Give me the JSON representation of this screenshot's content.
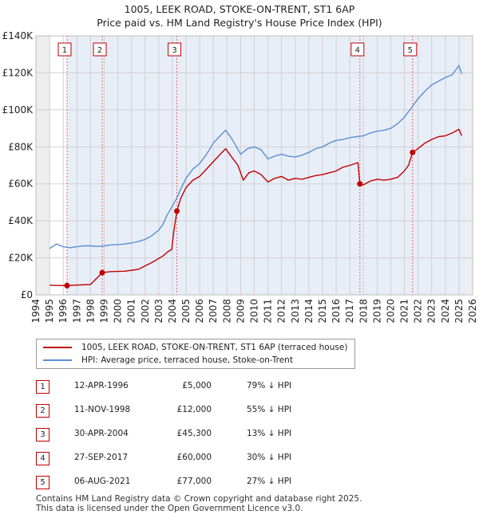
{
  "title_line1": "1005, LEEK ROAD, STOKE-ON-TRENT, ST1 6AP",
  "title_line2": "Price paid vs. HM Land Registry's House Price Index (HPI)",
  "chart_data": {
    "type": "line",
    "xlim": [
      1994,
      2026
    ],
    "ylim": [
      0,
      140000
    ],
    "yticks": [
      0,
      20000,
      40000,
      60000,
      80000,
      100000,
      120000,
      140000
    ],
    "ytick_labels": [
      "£0",
      "£20K",
      "£40K",
      "£60K",
      "£80K",
      "£100K",
      "£120K",
      "£140K"
    ],
    "xticks": [
      1994,
      1995,
      1996,
      1997,
      1998,
      1999,
      2000,
      2001,
      2002,
      2003,
      2004,
      2005,
      2006,
      2007,
      2008,
      2009,
      2010,
      2011,
      2012,
      2013,
      2014,
      2015,
      2016,
      2017,
      2018,
      2019,
      2020,
      2021,
      2022,
      2023,
      2024,
      2025,
      2026
    ],
    "grid": true,
    "legend_position": "below-chart",
    "colors": {
      "price": "#c00000",
      "hpi": "#5b8fd4",
      "band": "#e8eef8",
      "vline": "#e06666"
    },
    "series": [
      {
        "name": "1005, LEEK ROAD, STOKE-ON-TRENT, ST1 6AP (terraced house)",
        "color": "#c00000",
        "points": [
          [
            1995.0,
            5200
          ],
          [
            1996.28,
            5000
          ],
          [
            1997.0,
            5300
          ],
          [
            1998.0,
            5600
          ],
          [
            1998.86,
            12000
          ],
          [
            1999.5,
            12600
          ],
          [
            2000.5,
            12800
          ],
          [
            2001.5,
            13800
          ],
          [
            2002.5,
            17500
          ],
          [
            2003.3,
            21000
          ],
          [
            2003.7,
            23500
          ],
          [
            2003.95,
            24500
          ],
          [
            2004.1,
            34000
          ],
          [
            2004.33,
            45300
          ],
          [
            2004.6,
            52000
          ],
          [
            2005.0,
            58000
          ],
          [
            2005.5,
            62000
          ],
          [
            2006.0,
            64000
          ],
          [
            2006.5,
            68000
          ],
          [
            2007.0,
            72000
          ],
          [
            2007.5,
            76000
          ],
          [
            2007.9,
            79000
          ],
          [
            2008.3,
            75000
          ],
          [
            2008.8,
            70000
          ],
          [
            2009.2,
            62000
          ],
          [
            2009.6,
            66000
          ],
          [
            2010.0,
            67000
          ],
          [
            2010.5,
            65000
          ],
          [
            2011.0,
            61000
          ],
          [
            2011.5,
            63000
          ],
          [
            2012.0,
            64000
          ],
          [
            2012.5,
            62000
          ],
          [
            2013.0,
            63000
          ],
          [
            2013.5,
            62500
          ],
          [
            2014.0,
            63500
          ],
          [
            2014.5,
            64500
          ],
          [
            2015.0,
            65000
          ],
          [
            2015.5,
            66000
          ],
          [
            2016.0,
            67000
          ],
          [
            2016.5,
            69000
          ],
          [
            2017.0,
            70000
          ],
          [
            2017.6,
            71500
          ],
          [
            2017.74,
            60000
          ],
          [
            2018.0,
            59500
          ],
          [
            2018.5,
            61500
          ],
          [
            2019.0,
            62500
          ],
          [
            2019.5,
            62000
          ],
          [
            2020.0,
            62500
          ],
          [
            2020.5,
            63500
          ],
          [
            2021.0,
            67000
          ],
          [
            2021.3,
            70000
          ],
          [
            2021.6,
            77000
          ],
          [
            2022.0,
            79000
          ],
          [
            2022.5,
            82000
          ],
          [
            2023.0,
            84000
          ],
          [
            2023.5,
            85500
          ],
          [
            2024.0,
            86000
          ],
          [
            2024.5,
            87500
          ],
          [
            2025.0,
            89500
          ],
          [
            2025.2,
            86000
          ]
        ]
      },
      {
        "name": "HPI: Average price, terraced house, Stoke-on-Trent",
        "color": "#5b8fd4",
        "points": [
          [
            1995.0,
            25000
          ],
          [
            1995.5,
            27500
          ],
          [
            1996.0,
            26000
          ],
          [
            1996.5,
            25500
          ],
          [
            1997.0,
            26000
          ],
          [
            1997.5,
            26500
          ],
          [
            1998.0,
            26500
          ],
          [
            1998.5,
            26200
          ],
          [
            1999.0,
            26500
          ],
          [
            1999.5,
            27000
          ],
          [
            2000.0,
            27200
          ],
          [
            2000.5,
            27500
          ],
          [
            2001.0,
            28000
          ],
          [
            2001.5,
            28800
          ],
          [
            2002.0,
            30000
          ],
          [
            2002.5,
            32000
          ],
          [
            2003.0,
            35000
          ],
          [
            2003.3,
            38000
          ],
          [
            2003.6,
            43000
          ],
          [
            2004.0,
            48000
          ],
          [
            2004.3,
            52000
          ],
          [
            2004.6,
            57000
          ],
          [
            2005.0,
            63000
          ],
          [
            2005.5,
            68000
          ],
          [
            2006.0,
            71000
          ],
          [
            2006.5,
            76000
          ],
          [
            2007.0,
            82000
          ],
          [
            2007.5,
            86000
          ],
          [
            2007.9,
            89000
          ],
          [
            2008.3,
            85000
          ],
          [
            2008.7,
            80000
          ],
          [
            2009.0,
            76000
          ],
          [
            2009.5,
            79000
          ],
          [
            2010.0,
            80000
          ],
          [
            2010.5,
            78500
          ],
          [
            2011.0,
            73500
          ],
          [
            2011.5,
            75000
          ],
          [
            2012.0,
            76000
          ],
          [
            2012.5,
            75000
          ],
          [
            2013.0,
            74500
          ],
          [
            2013.5,
            75500
          ],
          [
            2014.0,
            77000
          ],
          [
            2014.5,
            79000
          ],
          [
            2015.0,
            80000
          ],
          [
            2015.5,
            82000
          ],
          [
            2016.0,
            83500
          ],
          [
            2016.5,
            84000
          ],
          [
            2017.0,
            85000
          ],
          [
            2017.5,
            85500
          ],
          [
            2018.0,
            86000
          ],
          [
            2018.5,
            87500
          ],
          [
            2019.0,
            88500
          ],
          [
            2019.5,
            89000
          ],
          [
            2020.0,
            90000
          ],
          [
            2020.5,
            92500
          ],
          [
            2021.0,
            96000
          ],
          [
            2021.5,
            101000
          ],
          [
            2022.0,
            106000
          ],
          [
            2022.5,
            110000
          ],
          [
            2023.0,
            113500
          ],
          [
            2023.5,
            115500
          ],
          [
            2024.0,
            117500
          ],
          [
            2024.5,
            119000
          ],
          [
            2025.0,
            124000
          ],
          [
            2025.2,
            119500
          ]
        ]
      }
    ],
    "sales": [
      {
        "label": "1",
        "x": 1996.28,
        "price": 5000
      },
      {
        "label": "2",
        "x": 1998.86,
        "price": 12000
      },
      {
        "label": "3",
        "x": 2004.33,
        "price": 45300
      },
      {
        "label": "4",
        "x": 2017.74,
        "price": 60000
      },
      {
        "label": "5",
        "x": 2021.6,
        "price": 77000
      }
    ],
    "shaded_ranges": [
      [
        1994.0,
        1995.0
      ],
      [
        2025.5,
        2026.0
      ]
    ]
  },
  "legend": {
    "price_label": "1005, LEEK ROAD, STOKE-ON-TRENT, ST1 6AP (terraced house)",
    "hpi_label": "HPI: Average price, terraced house, Stoke-on-Trent"
  },
  "transactions": [
    {
      "num": "1",
      "date": "12-APR-1996",
      "price": "£5,000",
      "hpi": "79% ↓ HPI"
    },
    {
      "num": "2",
      "date": "11-NOV-1998",
      "price": "£12,000",
      "hpi": "55% ↓ HPI"
    },
    {
      "num": "3",
      "date": "30-APR-2004",
      "price": "£45,300",
      "hpi": "13% ↓ HPI"
    },
    {
      "num": "4",
      "date": "27-SEP-2017",
      "price": "£60,000",
      "hpi": "30% ↓ HPI"
    },
    {
      "num": "5",
      "date": "06-AUG-2021",
      "price": "£77,000",
      "hpi": "27% ↓ HPI"
    }
  ],
  "footer": {
    "line1": "Contains HM Land Registry data © Crown copyright and database right 2025.",
    "line2": "This data is licensed under the Open Government Licence v3.0."
  }
}
